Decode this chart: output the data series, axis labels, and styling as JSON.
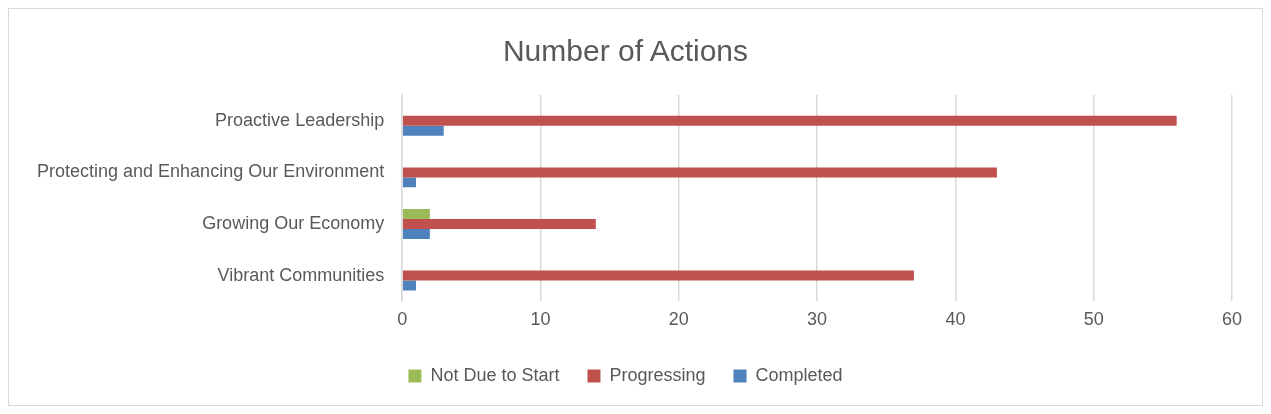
{
  "chart_data": {
    "type": "bar",
    "orientation": "horizontal",
    "title": "Number of Actions",
    "categories": [
      "Proactive Leadership",
      "Protecting and Enhancing Our Environment",
      "Growing Our Economy",
      "Vibrant Communities"
    ],
    "series": [
      {
        "name": "Not Due to Start",
        "color": "#9bbb59",
        "values": [
          0,
          0,
          2,
          0
        ]
      },
      {
        "name": "Progressing",
        "color": "#c0504d",
        "values": [
          56,
          43,
          14,
          37
        ]
      },
      {
        "name": "Completed",
        "color": "#4f81bd",
        "values": [
          3,
          1,
          2,
          1
        ]
      }
    ],
    "xlim": [
      0,
      60
    ],
    "xticks": [
      0,
      10,
      20,
      30,
      40,
      50,
      60
    ],
    "grid": "x",
    "legend": "bottom"
  }
}
